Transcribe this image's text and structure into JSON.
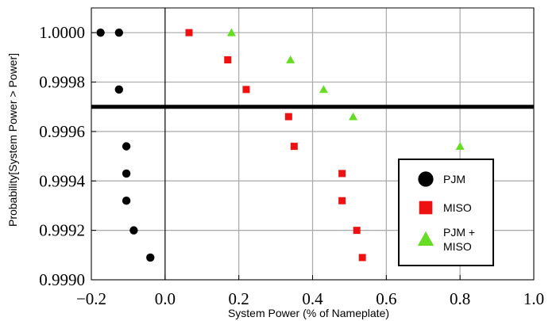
{
  "chart_data": {
    "type": "scatter",
    "xlabel": "System Power (% of Nameplate)",
    "ylabel": "Probability[System Power > Power]",
    "xlim": [
      -0.2,
      1.0
    ],
    "ylim": [
      0.999,
      1.0001
    ],
    "x_ticks": [
      -0.2,
      0.0,
      0.2,
      0.4,
      0.6,
      0.8,
      1.0
    ],
    "x_tick_labels": [
      "−0.2",
      "0.0",
      "0.2",
      "0.4",
      "0.6",
      "0.8",
      "1.0"
    ],
    "y_ticks": [
      0.999,
      0.9992,
      0.9994,
      0.9996,
      0.9998,
      1.0
    ],
    "y_tick_labels": [
      "0.9990",
      "0.9992",
      "0.9994",
      "0.9996",
      "0.9998",
      "1.0000"
    ],
    "grid": true,
    "reference_line_y": 0.9997,
    "legend_position": "bottom-right",
    "series": [
      {
        "name": "PJM",
        "marker": "circle",
        "color": "#000000",
        "points": [
          [
            -0.175,
            1.0
          ],
          [
            -0.125,
            1.0
          ],
          [
            -0.125,
            0.99977
          ],
          [
            -0.105,
            0.99954
          ],
          [
            -0.105,
            0.99943
          ],
          [
            -0.105,
            0.99932
          ],
          [
            -0.085,
            0.9992
          ],
          [
            -0.04,
            0.99909
          ]
        ]
      },
      {
        "name": "MISO",
        "marker": "square",
        "color": "#ee1111",
        "points": [
          [
            0.065,
            1.0
          ],
          [
            0.17,
            0.99989
          ],
          [
            0.22,
            0.99977
          ],
          [
            0.335,
            0.99966
          ],
          [
            0.35,
            0.99954
          ],
          [
            0.48,
            0.99943
          ],
          [
            0.48,
            0.99932
          ],
          [
            0.52,
            0.9992
          ],
          [
            0.535,
            0.99909
          ]
        ]
      },
      {
        "name": "PJM + MISO",
        "legend_lines": [
          "PJM +",
          "MISO"
        ],
        "marker": "triangle",
        "color": "#66dd22",
        "points": [
          [
            0.18,
            1.0
          ],
          [
            0.34,
            0.99989
          ],
          [
            0.43,
            0.99977
          ],
          [
            0.51,
            0.99966
          ],
          [
            0.8,
            0.99954
          ]
        ]
      }
    ]
  }
}
